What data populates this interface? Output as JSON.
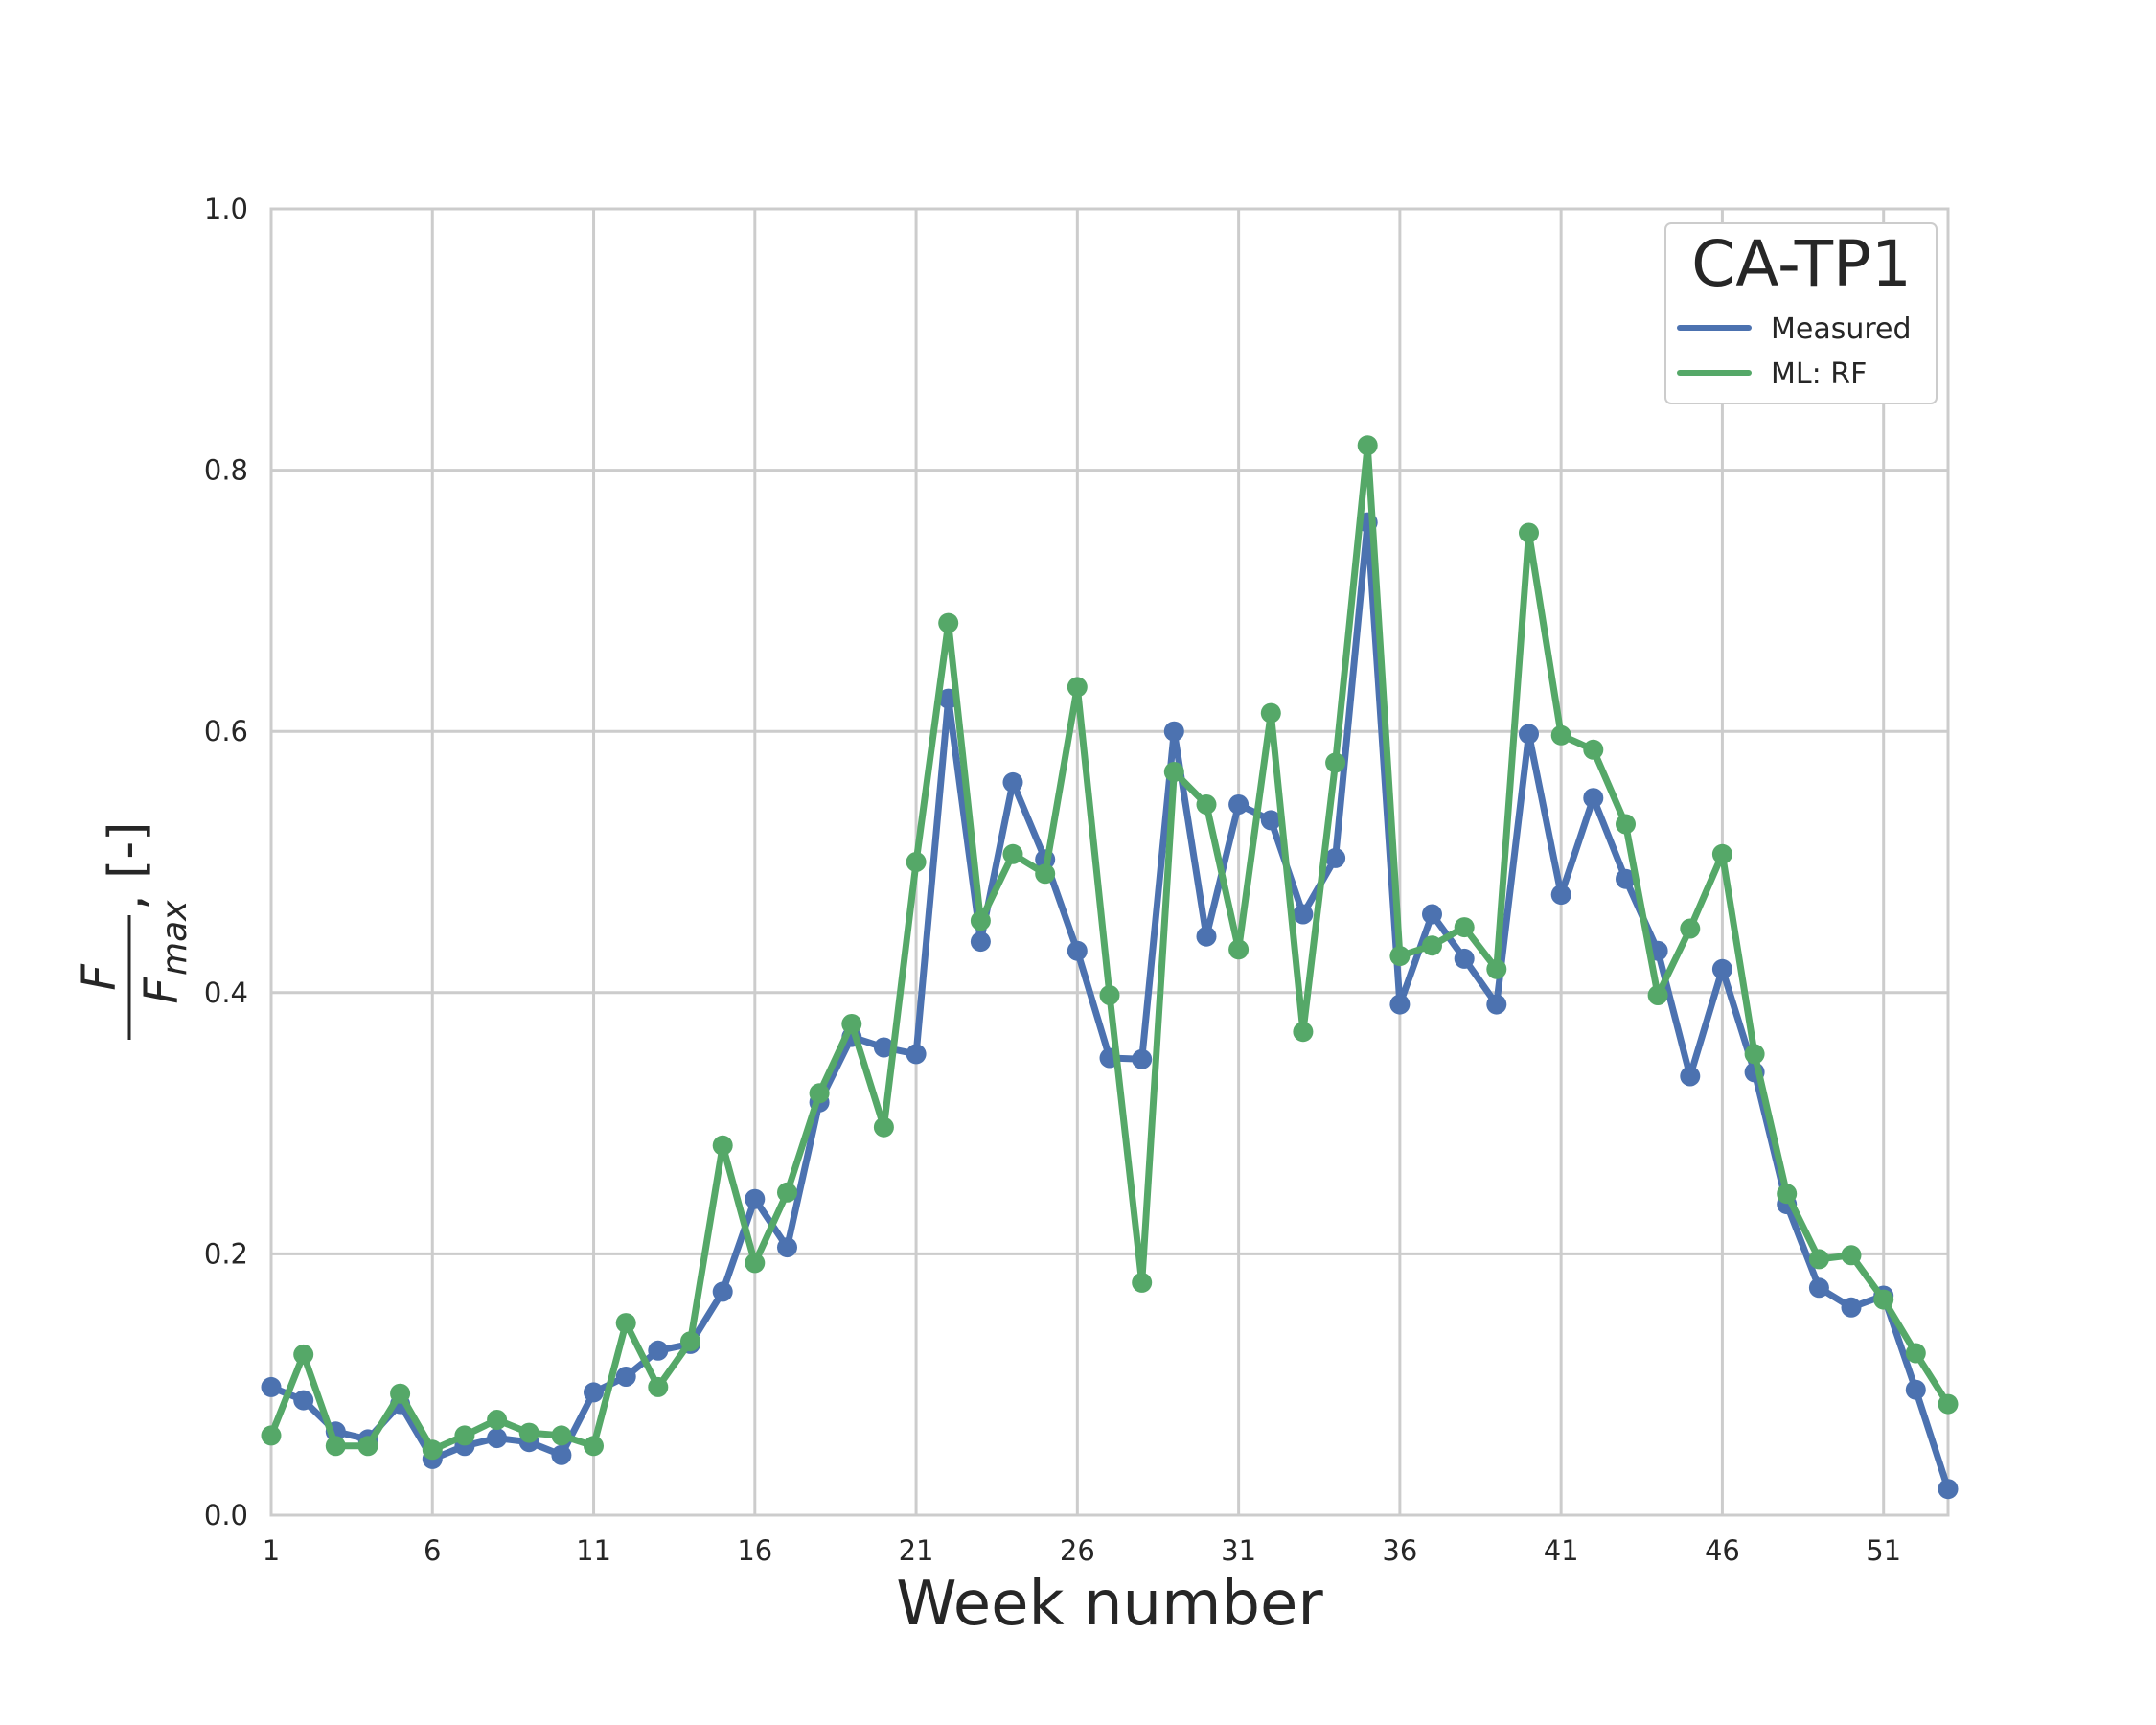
{
  "chart_data": {
    "type": "line",
    "legend_title": "CA-TP1",
    "xlabel": "Week number",
    "ylabel": {
      "numerator": "F",
      "denominator": "F",
      "denominator_sub": "max",
      "suffix": ", [-]"
    },
    "xlim": [
      1,
      53
    ],
    "ylim": [
      0.0,
      1.0
    ],
    "xticks": [
      1,
      6,
      11,
      16,
      21,
      26,
      31,
      36,
      41,
      46,
      51
    ],
    "yticks": [
      0.0,
      0.2,
      0.4,
      0.6,
      0.8,
      1.0
    ],
    "grid": true,
    "legend_position": "top-right",
    "x": [
      1,
      2,
      3,
      4,
      5,
      6,
      7,
      8,
      9,
      10,
      11,
      12,
      13,
      14,
      15,
      16,
      17,
      18,
      19,
      20,
      21,
      22,
      23,
      24,
      25,
      26,
      27,
      28,
      29,
      30,
      31,
      32,
      33,
      34,
      35,
      36,
      37,
      38,
      39,
      40,
      41,
      42,
      43,
      44,
      45,
      46,
      47,
      48,
      49,
      50,
      51,
      52,
      53
    ],
    "series": [
      {
        "name": "Measured",
        "color": "#4c72b0",
        "values": [
          0.098,
          0.088,
          0.064,
          0.058,
          0.085,
          0.043,
          0.053,
          0.059,
          0.056,
          0.046,
          0.094,
          0.106,
          0.126,
          0.131,
          0.171,
          0.242,
          0.205,
          0.316,
          0.366,
          0.358,
          0.353,
          0.625,
          0.439,
          0.561,
          0.502,
          0.432,
          0.35,
          0.349,
          0.6,
          0.443,
          0.544,
          0.532,
          0.46,
          0.503,
          0.76,
          0.391,
          0.46,
          0.426,
          0.391,
          0.598,
          0.475,
          0.549,
          0.487,
          0.432,
          0.336,
          0.418,
          0.339,
          0.238,
          0.174,
          0.159,
          0.168,
          0.096,
          0.02
        ]
      },
      {
        "name": "ML: RF",
        "color": "#55a868",
        "values": [
          0.061,
          0.123,
          0.053,
          0.053,
          0.093,
          0.05,
          0.061,
          0.073,
          0.063,
          0.061,
          0.053,
          0.147,
          0.098,
          0.133,
          0.283,
          0.193,
          0.247,
          0.323,
          0.376,
          0.297,
          0.5,
          0.683,
          0.455,
          0.506,
          0.491,
          0.634,
          0.398,
          0.178,
          0.569,
          0.544,
          0.433,
          0.614,
          0.37,
          0.576,
          0.819,
          0.428,
          0.436,
          0.45,
          0.418,
          0.752,
          0.597,
          0.586,
          0.529,
          0.398,
          0.449,
          0.506,
          0.353,
          0.246,
          0.196,
          0.199,
          0.165,
          0.124,
          0.085
        ]
      }
    ]
  }
}
